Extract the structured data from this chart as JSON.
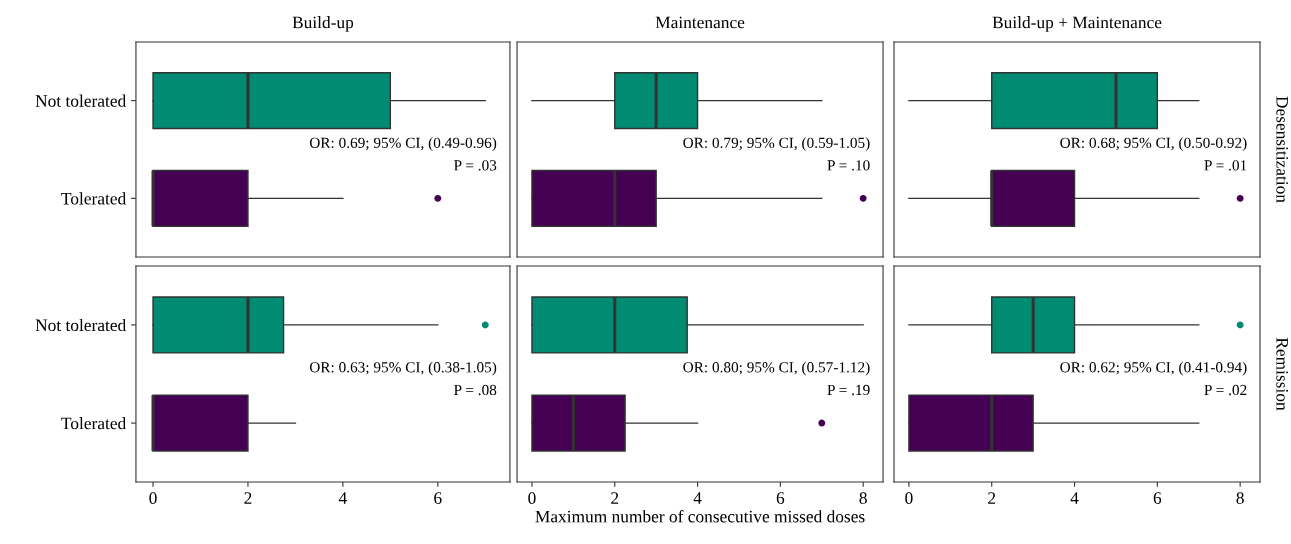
{
  "chart_data": [
    {
      "type": "box",
      "title": "Build-up",
      "orientation": "horizontal",
      "categories": [
        "Not tolerated",
        "Tolerated"
      ],
      "colors": [
        "#008b72",
        "#440154"
      ],
      "xlim": [
        -0.36,
        7.52
      ],
      "tick_labels": "y",
      "boxes": [
        {
          "low": 0,
          "q1": 0,
          "median": 2,
          "q3": 5,
          "high": 7
        },
        {
          "low": 0,
          "q1": 0,
          "median": 0,
          "q3": 2,
          "high": 4,
          "outliers": [
            6
          ]
        }
      ],
      "annotations": [
        "OR: 0.69; 95% CI, (0.49-0.96)",
        "P = .03"
      ]
    },
    {
      "type": "box",
      "title": "Maintenance",
      "orientation": "horizontal",
      "colors": [
        "#008b72",
        "#440154"
      ],
      "xlim": [
        -0.36,
        8.48
      ],
      "tick_labels": false,
      "boxes": [
        {
          "low": 0,
          "q1": 2,
          "median": 3,
          "q3": 4,
          "high": 7
        },
        {
          "low": 0,
          "q1": 0,
          "median": 2,
          "q3": 3,
          "high": 7,
          "outliers": [
            8
          ]
        }
      ],
      "annotations": [
        "OR: 0.79; 95% CI, (0.59-1.05)",
        "P = .10"
      ]
    },
    {
      "type": "box",
      "title": "Build-up + Maintenance",
      "y2label": "Desensitization",
      "orientation": "horizontal",
      "colors": [
        "#008b72",
        "#440154"
      ],
      "xlim": [
        -0.36,
        8.48
      ],
      "tick_labels": false,
      "boxes": [
        {
          "low": 0,
          "q1": 2,
          "median": 5,
          "q3": 6,
          "high": 7
        },
        {
          "low": 0,
          "q1": 2,
          "median": 2,
          "q3": 4,
          "high": 7,
          "outliers": [
            8
          ]
        }
      ],
      "annotations": [
        "OR: 0.68; 95% CI, (0.50-0.92)",
        "P = .01"
      ]
    },
    {
      "type": "box",
      "orientation": "horizontal",
      "categories": [
        "Not tolerated",
        "Tolerated"
      ],
      "colors": [
        "#008b72",
        "#440154"
      ],
      "xlim": [
        -0.36,
        7.52
      ],
      "xticks": [
        0,
        2,
        4,
        6
      ],
      "boxes": [
        {
          "low": 0,
          "q1": 0,
          "median": 2,
          "q3": 2.75,
          "high": 6,
          "outliers": [
            7
          ]
        },
        {
          "low": 0,
          "q1": 0,
          "median": 0,
          "q3": 2,
          "high": 3
        }
      ],
      "annotations": [
        "OR: 0.63; 95% CI, (0.38-1.05)",
        "P = .08"
      ]
    },
    {
      "type": "box",
      "xlabel": "Maximum number of consecutive missed doses",
      "orientation": "horizontal",
      "colors": [
        "#008b72",
        "#440154"
      ],
      "xlim": [
        -0.36,
        8.48
      ],
      "xticks": [
        0,
        2,
        4,
        6,
        8
      ],
      "tick_labels": "x",
      "boxes": [
        {
          "low": 0,
          "q1": 0,
          "median": 2,
          "q3": 3.75,
          "high": 8
        },
        {
          "low": 0,
          "q1": 0,
          "median": 1,
          "q3": 2.25,
          "high": 4,
          "outliers": [
            7
          ]
        }
      ],
      "annotations": [
        "OR: 0.80; 95% CI, (0.57-1.12)",
        "P = .19"
      ]
    },
    {
      "type": "box",
      "y2label": "Remission",
      "orientation": "horizontal",
      "colors": [
        "#008b72",
        "#440154"
      ],
      "xlim": [
        -0.36,
        8.48
      ],
      "xticks": [
        0,
        2,
        4,
        6,
        8
      ],
      "tick_labels": "x",
      "boxes": [
        {
          "low": 0,
          "q1": 2,
          "median": 3,
          "q3": 4,
          "high": 7,
          "outliers": [
            8
          ]
        },
        {
          "low": 0,
          "q1": 0,
          "median": 2,
          "q3": 3,
          "high": 7
        }
      ],
      "annotations": [
        "OR: 0.62; 95% CI, (0.41-0.94)",
        "P = .02"
      ]
    }
  ]
}
